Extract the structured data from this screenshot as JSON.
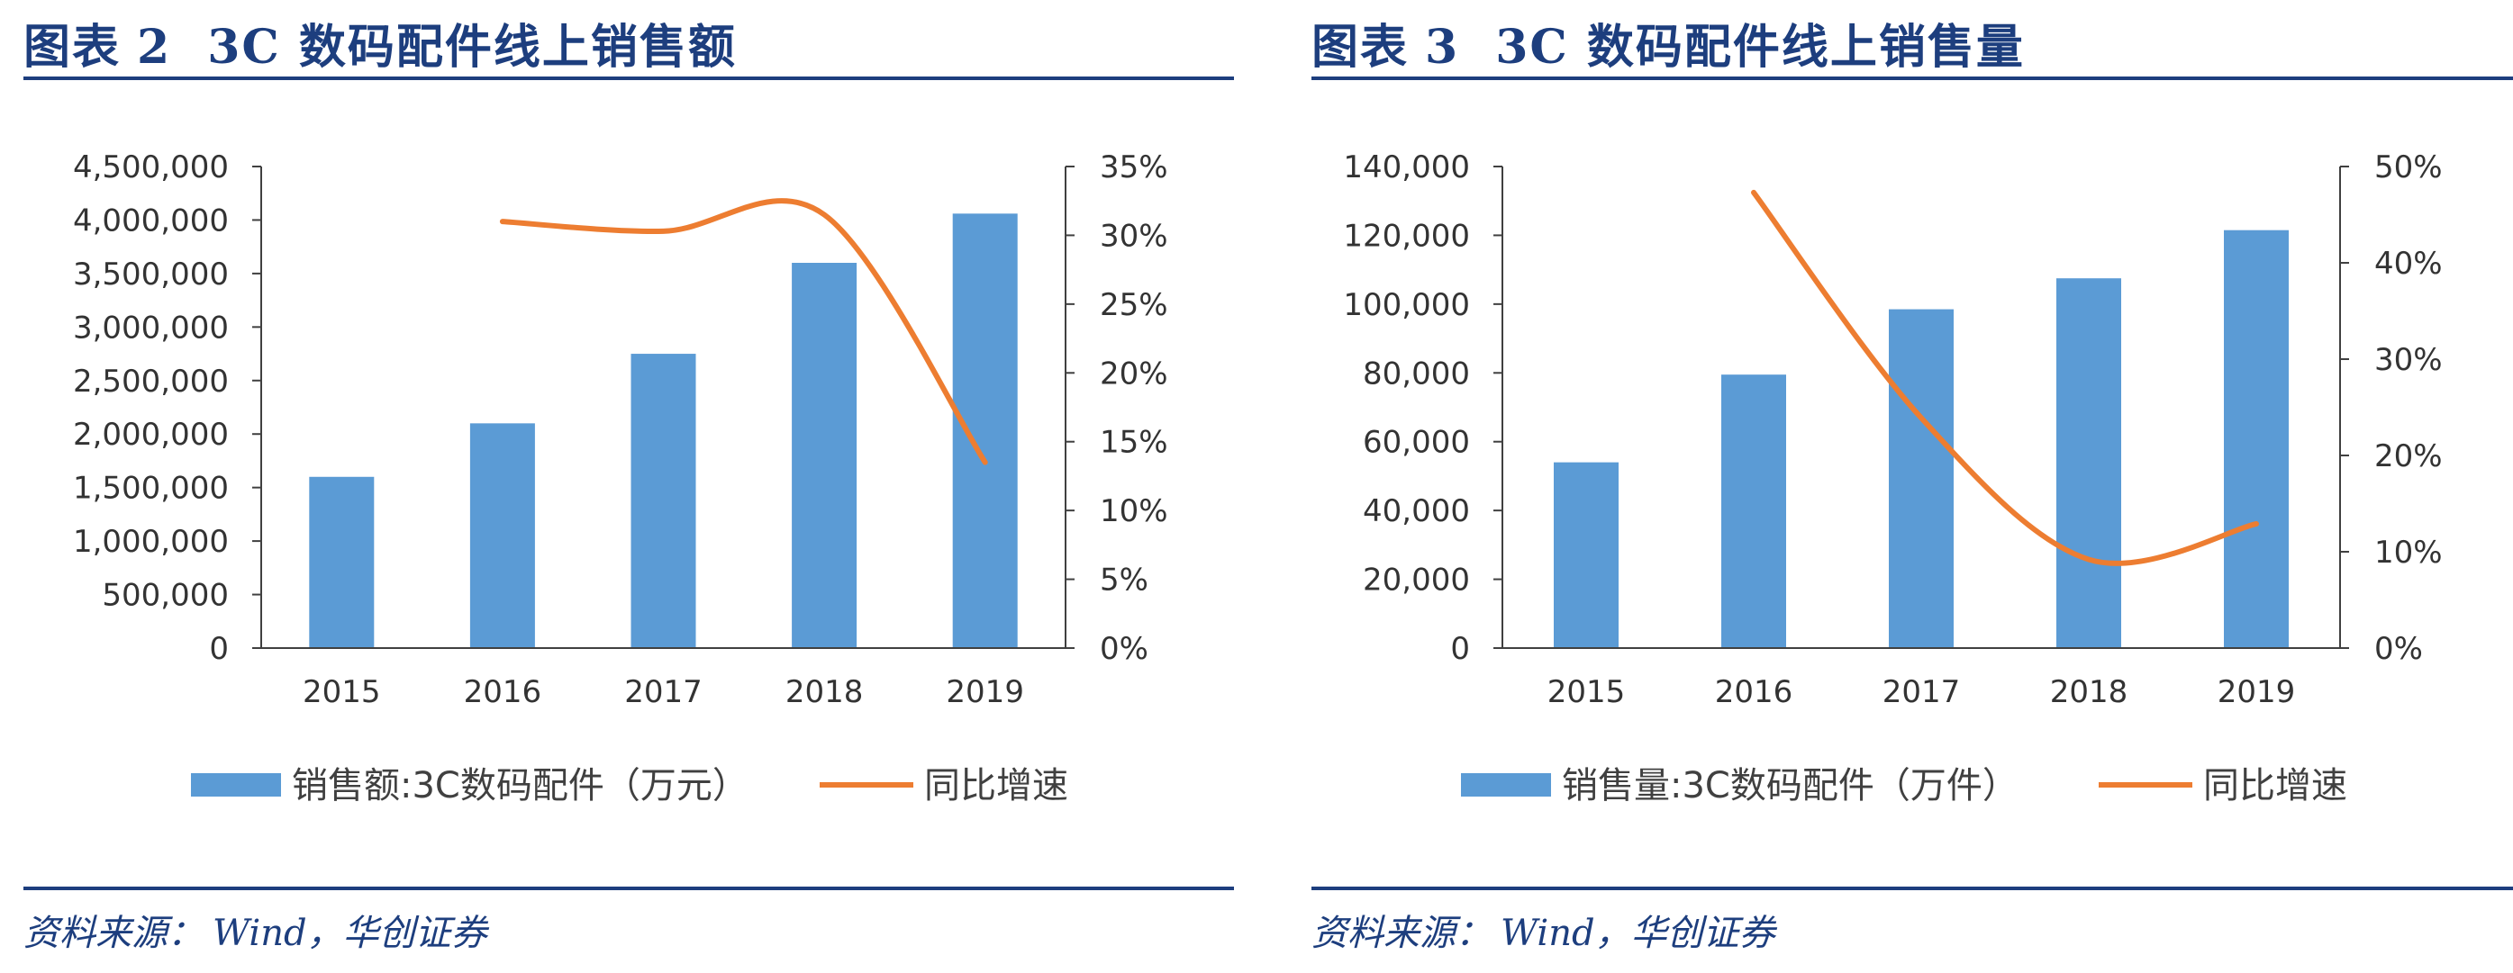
{
  "chart_data": [
    {
      "type": "bar",
      "figure_label": "图表",
      "figure_number": "2",
      "title": "3C 数码配件线上销售额",
      "categories": [
        "2015",
        "2016",
        "2017",
        "2018",
        "2019"
      ],
      "series": [
        {
          "name": "销售额:3C数码配件（万元）",
          "type": "bar",
          "axis": "left",
          "values": [
            1600000,
            2100000,
            2750000,
            3600000,
            4060000
          ]
        },
        {
          "name": "同比增速",
          "type": "line",
          "axis": "right",
          "values": [
            null,
            31.0,
            30.3,
            31.5,
            13.5
          ]
        }
      ],
      "y_left": {
        "min": 0,
        "max": 4500000,
        "step": 500000,
        "tick_labels": [
          "0",
          "500,000",
          "1,000,000",
          "1,500,000",
          "2,000,000",
          "2,500,000",
          "3,000,000",
          "3,500,000",
          "4,000,000",
          "4,500,000"
        ]
      },
      "y_right": {
        "min": 0,
        "max": 35,
        "step": 5,
        "tick_labels": [
          "0%",
          "5%",
          "10%",
          "15%",
          "20%",
          "25%",
          "30%",
          "35%"
        ]
      },
      "grid": false,
      "legend_position": "bottom"
    },
    {
      "type": "bar",
      "figure_label": "图表",
      "figure_number": "3",
      "title": "3C 数码配件线上销售量",
      "categories": [
        "2015",
        "2016",
        "2017",
        "2018",
        "2019"
      ],
      "series": [
        {
          "name": "销售量:3C数码配件（万件）",
          "type": "bar",
          "axis": "left",
          "values": [
            54000,
            79500,
            98500,
            107500,
            121500
          ]
        },
        {
          "name": "同比增速",
          "type": "line",
          "axis": "right",
          "values": [
            null,
            47.3,
            23.9,
            9.2,
            12.9
          ]
        }
      ],
      "y_left": {
        "min": 0,
        "max": 140000,
        "step": 20000,
        "tick_labels": [
          "0",
          "20,000",
          "40,000",
          "60,000",
          "80,000",
          "100,000",
          "120,000",
          "140,000"
        ]
      },
      "y_right": {
        "min": 0,
        "max": 50,
        "step": 10,
        "tick_labels": [
          "0%",
          "10%",
          "20%",
          "30%",
          "40%",
          "50%"
        ]
      },
      "grid": false,
      "legend_position": "bottom"
    }
  ],
  "source": {
    "label": "资料来源：",
    "text": "Wind，华创证券"
  },
  "colors": {
    "bar": "#5b9bd5",
    "line": "#ed7d31",
    "title": "#1d3e7e"
  }
}
